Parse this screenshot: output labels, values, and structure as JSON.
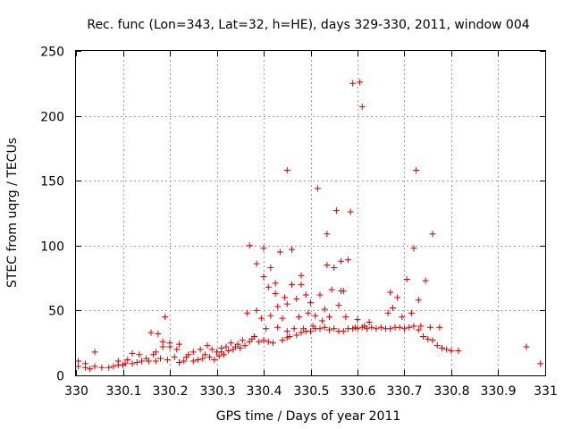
{
  "chart_data": {
    "type": "scatter",
    "title": "Rec. func (Lon=343, Lat=32, h=HE), days 329-330, 2011, window 004",
    "xlabel": "GPS time / Days of year 2011",
    "ylabel": "STEC from uqrg / TECUs",
    "xlim": [
      330,
      331
    ],
    "ylim": [
      0,
      250
    ],
    "xticks": [
      "330",
      "330.1",
      "330.2",
      "330.3",
      "330.4",
      "330.5",
      "330.6",
      "330.7",
      "330.8",
      "330.9",
      "331"
    ],
    "yticks": [
      "0",
      "50",
      "100",
      "150",
      "200",
      "250"
    ],
    "grid": true,
    "marker": "plus",
    "color": "#cc0000",
    "points": [
      [
        330.005,
        7
      ],
      [
        330.005,
        11
      ],
      [
        330.02,
        6
      ],
      [
        330.02,
        9
      ],
      [
        330.03,
        5
      ],
      [
        330.04,
        7
      ],
      [
        330.04,
        18
      ],
      [
        330.055,
        6
      ],
      [
        330.07,
        6
      ],
      [
        330.08,
        7
      ],
      [
        330.09,
        8
      ],
      [
        330.09,
        11
      ],
      [
        330.1,
        8
      ],
      [
        330.105,
        9
      ],
      [
        330.11,
        12
      ],
      [
        330.12,
        9
      ],
      [
        330.12,
        17
      ],
      [
        330.13,
        10
      ],
      [
        330.135,
        16
      ],
      [
        330.14,
        11
      ],
      [
        330.15,
        13
      ],
      [
        330.155,
        11
      ],
      [
        330.16,
        33
      ],
      [
        330.165,
        16
      ],
      [
        330.17,
        11
      ],
      [
        330.17,
        18
      ],
      [
        330.175,
        32
      ],
      [
        330.18,
        13
      ],
      [
        330.185,
        22
      ],
      [
        330.185,
        26
      ],
      [
        330.19,
        45
      ],
      [
        330.195,
        12
      ],
      [
        330.2,
        22
      ],
      [
        330.2,
        25
      ],
      [
        330.21,
        14
      ],
      [
        330.215,
        20
      ],
      [
        330.22,
        10
      ],
      [
        330.22,
        24
      ],
      [
        330.23,
        11
      ],
      [
        330.235,
        14
      ],
      [
        330.24,
        16
      ],
      [
        330.25,
        11
      ],
      [
        330.25,
        18
      ],
      [
        330.26,
        12
      ],
      [
        330.265,
        20
      ],
      [
        330.27,
        13
      ],
      [
        330.275,
        16
      ],
      [
        330.28,
        23
      ],
      [
        330.285,
        14
      ],
      [
        330.29,
        20
      ],
      [
        330.295,
        12
      ],
      [
        330.3,
        18
      ],
      [
        330.305,
        15
      ],
      [
        330.31,
        18
      ],
      [
        330.31,
        21
      ],
      [
        330.315,
        16
      ],
      [
        330.32,
        22
      ],
      [
        330.325,
        19
      ],
      [
        330.33,
        25
      ],
      [
        330.335,
        20
      ],
      [
        330.34,
        22
      ],
      [
        330.345,
        24
      ],
      [
        330.35,
        21
      ],
      [
        330.355,
        27
      ],
      [
        330.36,
        23
      ],
      [
        330.365,
        48
      ],
      [
        330.37,
        26
      ],
      [
        330.37,
        100
      ],
      [
        330.375,
        28
      ],
      [
        330.38,
        30
      ],
      [
        330.385,
        50
      ],
      [
        330.385,
        86
      ],
      [
        330.39,
        26
      ],
      [
        330.395,
        44
      ],
      [
        330.4,
        27
      ],
      [
        330.4,
        76
      ],
      [
        330.4,
        98
      ],
      [
        330.405,
        36
      ],
      [
        330.41,
        26
      ],
      [
        330.41,
        68
      ],
      [
        330.415,
        46
      ],
      [
        330.415,
        83
      ],
      [
        330.42,
        25
      ],
      [
        330.425,
        63
      ],
      [
        330.425,
        71
      ],
      [
        330.43,
        37
      ],
      [
        330.43,
        53
      ],
      [
        330.435,
        95
      ],
      [
        330.44,
        27
      ],
      [
        330.44,
        44
      ],
      [
        330.445,
        60
      ],
      [
        330.45,
        29
      ],
      [
        330.45,
        34
      ],
      [
        330.45,
        55
      ],
      [
        330.45,
        158
      ],
      [
        330.455,
        30
      ],
      [
        330.46,
        70
      ],
      [
        330.46,
        97
      ],
      [
        330.465,
        36
      ],
      [
        330.47,
        31
      ],
      [
        330.47,
        59
      ],
      [
        330.475,
        45
      ],
      [
        330.48,
        33
      ],
      [
        330.48,
        70
      ],
      [
        330.48,
        77
      ],
      [
        330.485,
        36
      ],
      [
        330.49,
        34
      ],
      [
        330.49,
        62
      ],
      [
        330.495,
        48
      ],
      [
        330.5,
        34
      ],
      [
        330.5,
        56
      ],
      [
        330.505,
        38
      ],
      [
        330.51,
        36
      ],
      [
        330.51,
        46
      ],
      [
        330.515,
        144
      ],
      [
        330.52,
        36
      ],
      [
        330.52,
        62
      ],
      [
        330.525,
        42
      ],
      [
        330.53,
        37
      ],
      [
        330.53,
        51
      ],
      [
        330.535,
        85
      ],
      [
        330.535,
        109
      ],
      [
        330.54,
        35
      ],
      [
        330.54,
        45
      ],
      [
        330.545,
        66
      ],
      [
        330.55,
        36
      ],
      [
        330.55,
        83
      ],
      [
        330.555,
        127
      ],
      [
        330.56,
        34
      ],
      [
        330.56,
        54
      ],
      [
        330.565,
        65
      ],
      [
        330.565,
        88
      ],
      [
        330.57,
        34
      ],
      [
        330.57,
        65
      ],
      [
        330.575,
        45
      ],
      [
        330.58,
        36
      ],
      [
        330.58,
        89
      ],
      [
        330.585,
        126
      ],
      [
        330.59,
        36
      ],
      [
        330.59,
        225
      ],
      [
        330.595,
        37
      ],
      [
        330.6,
        36
      ],
      [
        330.6,
        43
      ],
      [
        330.605,
        226
      ],
      [
        330.61,
        37
      ],
      [
        330.61,
        207
      ],
      [
        330.615,
        38
      ],
      [
        330.62,
        36
      ],
      [
        330.625,
        41
      ],
      [
        330.63,
        37
      ],
      [
        330.64,
        36
      ],
      [
        330.65,
        37
      ],
      [
        330.66,
        36
      ],
      [
        330.665,
        48
      ],
      [
        330.67,
        36
      ],
      [
        330.67,
        64
      ],
      [
        330.675,
        52
      ],
      [
        330.68,
        37
      ],
      [
        330.685,
        60
      ],
      [
        330.69,
        37
      ],
      [
        330.695,
        45
      ],
      [
        330.7,
        36
      ],
      [
        330.705,
        74
      ],
      [
        330.71,
        37
      ],
      [
        330.715,
        48
      ],
      [
        330.72,
        38
      ],
      [
        330.72,
        98
      ],
      [
        330.725,
        158
      ],
      [
        330.73,
        35
      ],
      [
        330.73,
        58
      ],
      [
        330.735,
        38
      ],
      [
        330.74,
        30
      ],
      [
        330.745,
        73
      ],
      [
        330.75,
        28
      ],
      [
        330.755,
        37
      ],
      [
        330.76,
        27
      ],
      [
        330.76,
        109
      ],
      [
        330.77,
        23
      ],
      [
        330.775,
        37
      ],
      [
        330.78,
        21
      ],
      [
        330.79,
        20
      ],
      [
        330.8,
        19
      ],
      [
        330.815,
        19
      ],
      [
        330.96,
        22
      ],
      [
        330.99,
        9
      ]
    ]
  }
}
